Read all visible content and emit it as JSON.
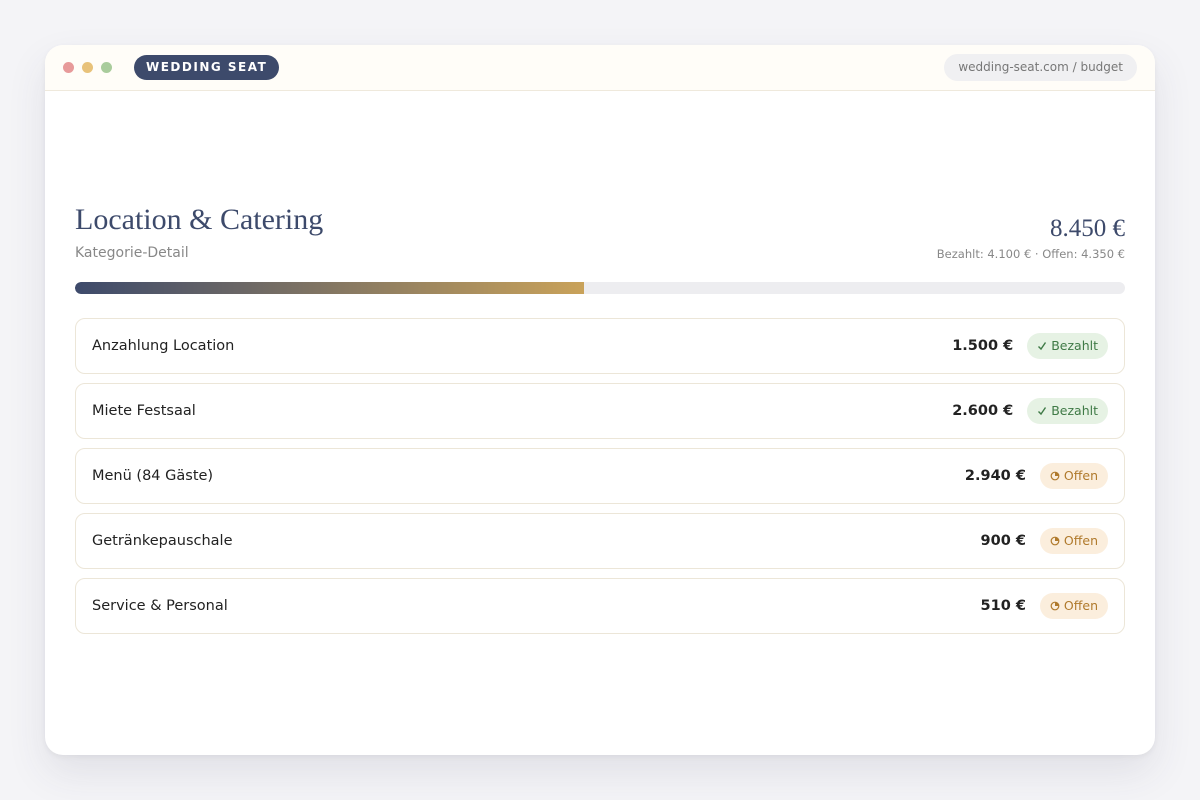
{
  "header": {
    "brand": "WEDDING SEAT",
    "url": "wedding-seat.com / budget"
  },
  "category": {
    "title": "Location & Catering",
    "subtitle": "Kategorie-Detail"
  },
  "budget": {
    "total": {
      "value": 8450,
      "label": "8.450 €"
    },
    "paid": {
      "value": 4100,
      "label": "Bezahlt: 4.100 €"
    },
    "separator": "·",
    "open": {
      "value": 4350,
      "label": "Offen: 4.350 €"
    }
  },
  "items": [
    {
      "name": "Anzahlung Location",
      "amount": "1.500 €",
      "status": "Bezahlt",
      "state": "paid"
    },
    {
      "name": "Miete Festsaal",
      "amount": "2.600 €",
      "status": "Bezahlt",
      "state": "paid"
    },
    {
      "name": "Menü (84 Gäste)",
      "amount": "2.940 €",
      "status": "Offen",
      "state": "open"
    },
    {
      "name": "Getränkepauschale",
      "amount": "900 €",
      "status": "Offen",
      "state": "open"
    },
    {
      "name": "Service & Personal",
      "amount": "510 €",
      "status": "Offen",
      "state": "open"
    }
  ]
}
